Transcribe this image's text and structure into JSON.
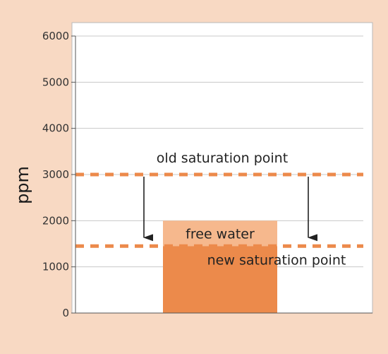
{
  "chart_data": {
    "type": "bar",
    "title": "",
    "xlabel": "",
    "ylabel": "ppm",
    "ylim": [
      0,
      6000
    ],
    "yticks": [
      {
        "value": 0,
        "label": "0"
      },
      {
        "value": 1000,
        "label": "1000"
      },
      {
        "value": 2000,
        "label": "2000"
      },
      {
        "value": 3000,
        "label": "3000"
      },
      {
        "value": 4000,
        "label": "4000"
      },
      {
        "value": 5000,
        "label": "5000"
      },
      {
        "value": 6000,
        "label": "6000"
      }
    ],
    "grid": true,
    "bar": {
      "total": 2000,
      "dissolved": 1450,
      "free_water_label": "free water"
    },
    "reference_lines": [
      {
        "key": "old",
        "value": 3000,
        "label": "old saturation point"
      },
      {
        "key": "new",
        "value": 1450,
        "label": "new saturation point"
      }
    ],
    "colors": {
      "background": "#f8d9c3",
      "plot_background": "#ffffff",
      "bar_dissolved": "#ec8a4b",
      "bar_free_water": "#f6b88d",
      "dashed_line": "#ec8a4b",
      "grid": "#c8c8c8",
      "arrow": "#222222",
      "annotation_text": "#222222"
    }
  }
}
